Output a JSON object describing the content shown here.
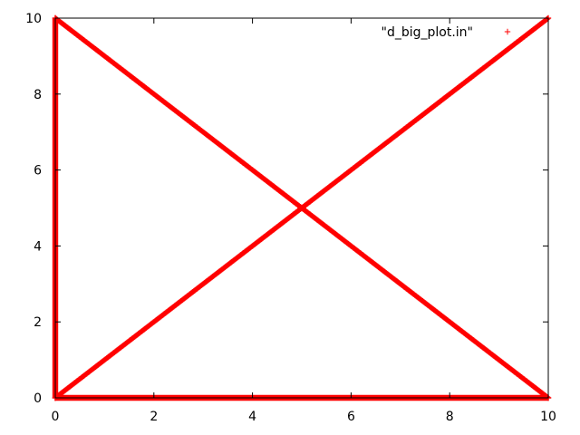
{
  "chart_data": {
    "type": "scatter",
    "title": "",
    "xlabel": "",
    "ylabel": "",
    "xlim": [
      0,
      10
    ],
    "ylim": [
      0,
      10
    ],
    "x_ticks": [
      0,
      2,
      4,
      6,
      8,
      10
    ],
    "y_ticks": [
      0,
      2,
      4,
      6,
      8,
      10
    ],
    "x_tick_labels": [
      "0",
      "2",
      "4",
      "6",
      "8",
      "10"
    ],
    "y_tick_labels": [
      "0",
      "2",
      "4",
      "6",
      "8",
      "10"
    ],
    "grid": false,
    "legend_position": "top-right",
    "marker": "plus",
    "color": "#ff0000",
    "series": [
      {
        "name": "\"d_big_plot.in\"",
        "segments": [
          {
            "from": [
              0,
              0
            ],
            "to": [
              10,
              10
            ]
          },
          {
            "from": [
              0,
              10
            ],
            "to": [
              10,
              0
            ]
          },
          {
            "from": [
              0,
              0
            ],
            "to": [
              10,
              0
            ]
          },
          {
            "from": [
              0,
              0
            ],
            "to": [
              0,
              10
            ]
          }
        ]
      }
    ]
  }
}
